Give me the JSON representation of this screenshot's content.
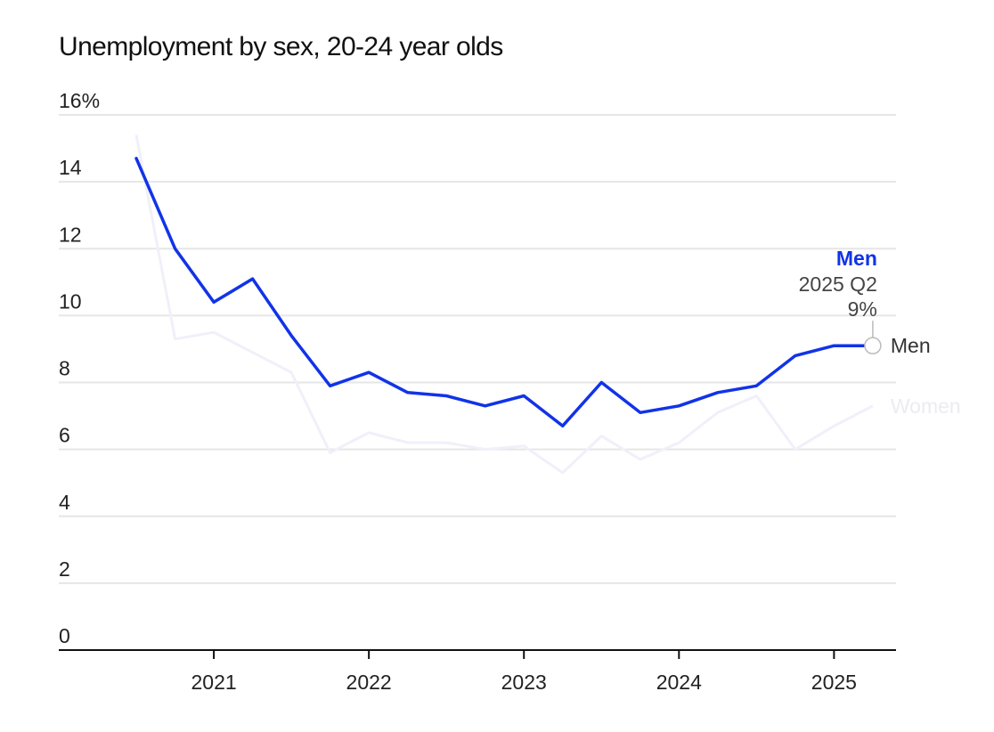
{
  "chart_data": {
    "type": "line",
    "title": "Unemployment by sex, 20-24 year olds",
    "xlabel": "",
    "ylabel": "",
    "y_ticks": [
      {
        "value": 0,
        "label": "0"
      },
      {
        "value": 2,
        "label": "2"
      },
      {
        "value": 4,
        "label": "4"
      },
      {
        "value": 6,
        "label": "6"
      },
      {
        "value": 8,
        "label": "8"
      },
      {
        "value": 10,
        "label": "10"
      },
      {
        "value": 12,
        "label": "12"
      },
      {
        "value": 14,
        "label": "14"
      },
      {
        "value": 16,
        "label": "16%"
      }
    ],
    "x_ticks": [
      {
        "value": 2021,
        "label": "2021"
      },
      {
        "value": 2022,
        "label": "2022"
      },
      {
        "value": 2023,
        "label": "2023"
      },
      {
        "value": 2024,
        "label": "2024"
      },
      {
        "value": 2025,
        "label": "2025"
      }
    ],
    "ylim": [
      0,
      16
    ],
    "xlim": [
      2020.0,
      2025.4
    ],
    "x": [
      2020.5,
      2020.75,
      2021.0,
      2021.25,
      2021.5,
      2021.75,
      2022.0,
      2022.25,
      2022.5,
      2022.75,
      2023.0,
      2023.25,
      2023.5,
      2023.75,
      2024.0,
      2024.25,
      2024.5,
      2024.75,
      2025.0,
      2025.25
    ],
    "series": [
      {
        "name": "Men",
        "color": "#1133e8",
        "values": [
          14.7,
          12.0,
          10.4,
          11.1,
          9.4,
          7.9,
          8.3,
          7.7,
          7.6,
          7.3,
          7.6,
          6.7,
          8.0,
          7.1,
          7.3,
          7.7,
          7.9,
          8.8,
          9.1,
          9.1
        ]
      },
      {
        "name": "Women",
        "color": "#f0f0fa",
        "values": [
          15.4,
          9.3,
          9.5,
          8.9,
          8.3,
          5.9,
          6.5,
          6.2,
          6.2,
          6.0,
          6.1,
          5.3,
          6.4,
          5.7,
          6.2,
          7.1,
          7.6,
          6.0,
          6.7,
          7.3
        ]
      }
    ],
    "annotation": {
      "series": "Men",
      "period": "2025 Q2",
      "value": "9%"
    },
    "grid": true,
    "legend": "end-labels"
  }
}
